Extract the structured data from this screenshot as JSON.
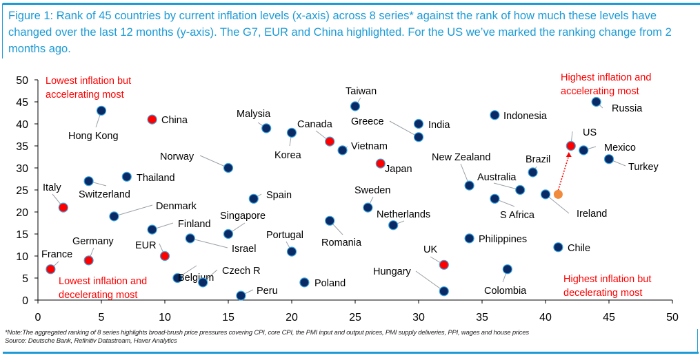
{
  "title": "Figure 1: Rank of 45 countries by current inflation levels (x-axis) across 8 series* against the rank of how much these levels have changed over the last 12 months (y-axis). The G7, EUR and China highlighted. For the US we’ve marked the ranking change from 2 months ago.",
  "footnote": {
    "note": "*Note:The aggregated ranking of 8 series highlights broad-brush price pressures covering CPI, core CPI, the PMI input and output prices, PMI supply deliveries, PPI, wages and house prices",
    "source": "Source: Deutsche Bank, Refinitiv Datastream, Haver Analytics"
  },
  "colors": {
    "title": "#1b9ad6",
    "other": "#0a2a66",
    "highlight": "#ff0000",
    "us_prior": "#f08a3c",
    "quadrant_text": "#ff0000"
  },
  "chart_data": {
    "type": "scatter",
    "title": "Rank of 45 countries by current inflation levels vs rank of change over last 12 months",
    "xlabel": "",
    "ylabel": "",
    "xlim": [
      0,
      50
    ],
    "ylim": [
      0,
      50
    ],
    "xticks": [
      "0",
      "5",
      "10",
      "15",
      "20",
      "25",
      "30",
      "35",
      "40",
      "45",
      "50"
    ],
    "yticks": [
      "0",
      "5",
      "10",
      "15",
      "20",
      "25",
      "30",
      "35",
      "40",
      "45",
      "50"
    ],
    "grid": false,
    "quadrant_labels": {
      "top_left": [
        "Lowest inflation but",
        "accelerating most"
      ],
      "bottom_left": [
        "Lowest inflation and",
        "decelerating most"
      ],
      "top_right": [
        "Highest inflation and",
        "accelerating most"
      ],
      "bottom_right": [
        "Highest inflation but",
        "decelerating most"
      ]
    },
    "points": [
      {
        "label": "Hong Kong",
        "x": 5,
        "y": 43,
        "group": "other"
      },
      {
        "label": "China",
        "x": 9,
        "y": 41,
        "group": "highlight"
      },
      {
        "label": "Malysia",
        "x": 18,
        "y": 39,
        "group": "other"
      },
      {
        "label": "Korea",
        "x": 20,
        "y": 38,
        "group": "other"
      },
      {
        "label": "Canada",
        "x": 23,
        "y": 36,
        "group": "highlight"
      },
      {
        "label": "Vietnam",
        "x": 24,
        "y": 34,
        "group": "other"
      },
      {
        "label": "Taiwan",
        "x": 25,
        "y": 44,
        "group": "other"
      },
      {
        "label": "Greece",
        "x": 30,
        "y": 37,
        "group": "other"
      },
      {
        "label": "India",
        "x": 30,
        "y": 40,
        "group": "other"
      },
      {
        "label": "Japan",
        "x": 27,
        "y": 31,
        "group": "highlight"
      },
      {
        "label": "Norway",
        "x": 15,
        "y": 30,
        "group": "other"
      },
      {
        "label": "Thailand",
        "x": 7,
        "y": 28,
        "group": "other"
      },
      {
        "label": "Switzerland",
        "x": 4,
        "y": 27,
        "group": "other"
      },
      {
        "label": "Italy",
        "x": 2,
        "y": 21,
        "group": "highlight"
      },
      {
        "label": "Denmark",
        "x": 6,
        "y": 19,
        "group": "other"
      },
      {
        "label": "Spain",
        "x": 17,
        "y": 23,
        "group": "other"
      },
      {
        "label": "Sweden",
        "x": 26,
        "y": 21,
        "group": "other"
      },
      {
        "label": "Netherlands",
        "x": 28,
        "y": 17,
        "group": "other"
      },
      {
        "label": "Romania",
        "x": 23,
        "y": 18,
        "group": "other"
      },
      {
        "label": "Finland",
        "x": 9,
        "y": 16,
        "group": "other"
      },
      {
        "label": "Singapore",
        "x": 15,
        "y": 15,
        "group": "other"
      },
      {
        "label": "Israel",
        "x": 12,
        "y": 14,
        "group": "other"
      },
      {
        "label": "Portugal",
        "x": 20,
        "y": 11,
        "group": "other"
      },
      {
        "label": "EUR",
        "x": 10,
        "y": 10,
        "group": "highlight"
      },
      {
        "label": "Germany",
        "x": 4,
        "y": 9,
        "group": "highlight"
      },
      {
        "label": "France",
        "x": 1,
        "y": 7,
        "group": "highlight"
      },
      {
        "label": "Belgium",
        "x": 11,
        "y": 5,
        "group": "other"
      },
      {
        "label": "Czech R",
        "x": 13,
        "y": 4,
        "group": "other"
      },
      {
        "label": "Peru",
        "x": 16,
        "y": 1,
        "group": "other"
      },
      {
        "label": "Poland",
        "x": 21,
        "y": 4,
        "group": "other"
      },
      {
        "label": "Hungary",
        "x": 32,
        "y": 2,
        "group": "other"
      },
      {
        "label": "UK",
        "x": 32,
        "y": 8,
        "group": "highlight"
      },
      {
        "label": "Philippines",
        "x": 34,
        "y": 14,
        "group": "other"
      },
      {
        "label": "Colombia",
        "x": 37,
        "y": 7,
        "group": "other"
      },
      {
        "label": "Chile",
        "x": 41,
        "y": 12,
        "group": "other"
      },
      {
        "label": "New Zealand",
        "x": 34,
        "y": 26,
        "group": "other"
      },
      {
        "label": "Australia",
        "x": 38,
        "y": 25,
        "group": "other"
      },
      {
        "label": "S Africa",
        "x": 36,
        "y": 23,
        "group": "other"
      },
      {
        "label": "Brazil",
        "x": 39,
        "y": 29,
        "group": "other"
      },
      {
        "label": "Ireland",
        "x": 40,
        "y": 24,
        "group": "other"
      },
      {
        "label": "US",
        "x": 42,
        "y": 35,
        "group": "highlight"
      },
      {
        "label": "Mexico",
        "x": 43,
        "y": 34,
        "group": "other"
      },
      {
        "label": "Turkey",
        "x": 45,
        "y": 32,
        "group": "other"
      },
      {
        "label": "Indonesia",
        "x": 36,
        "y": 42,
        "group": "other"
      },
      {
        "label": "Russia",
        "x": 44,
        "y": 45,
        "group": "other"
      }
    ],
    "us_two_months_ago": {
      "x": 41,
      "y": 24
    }
  }
}
